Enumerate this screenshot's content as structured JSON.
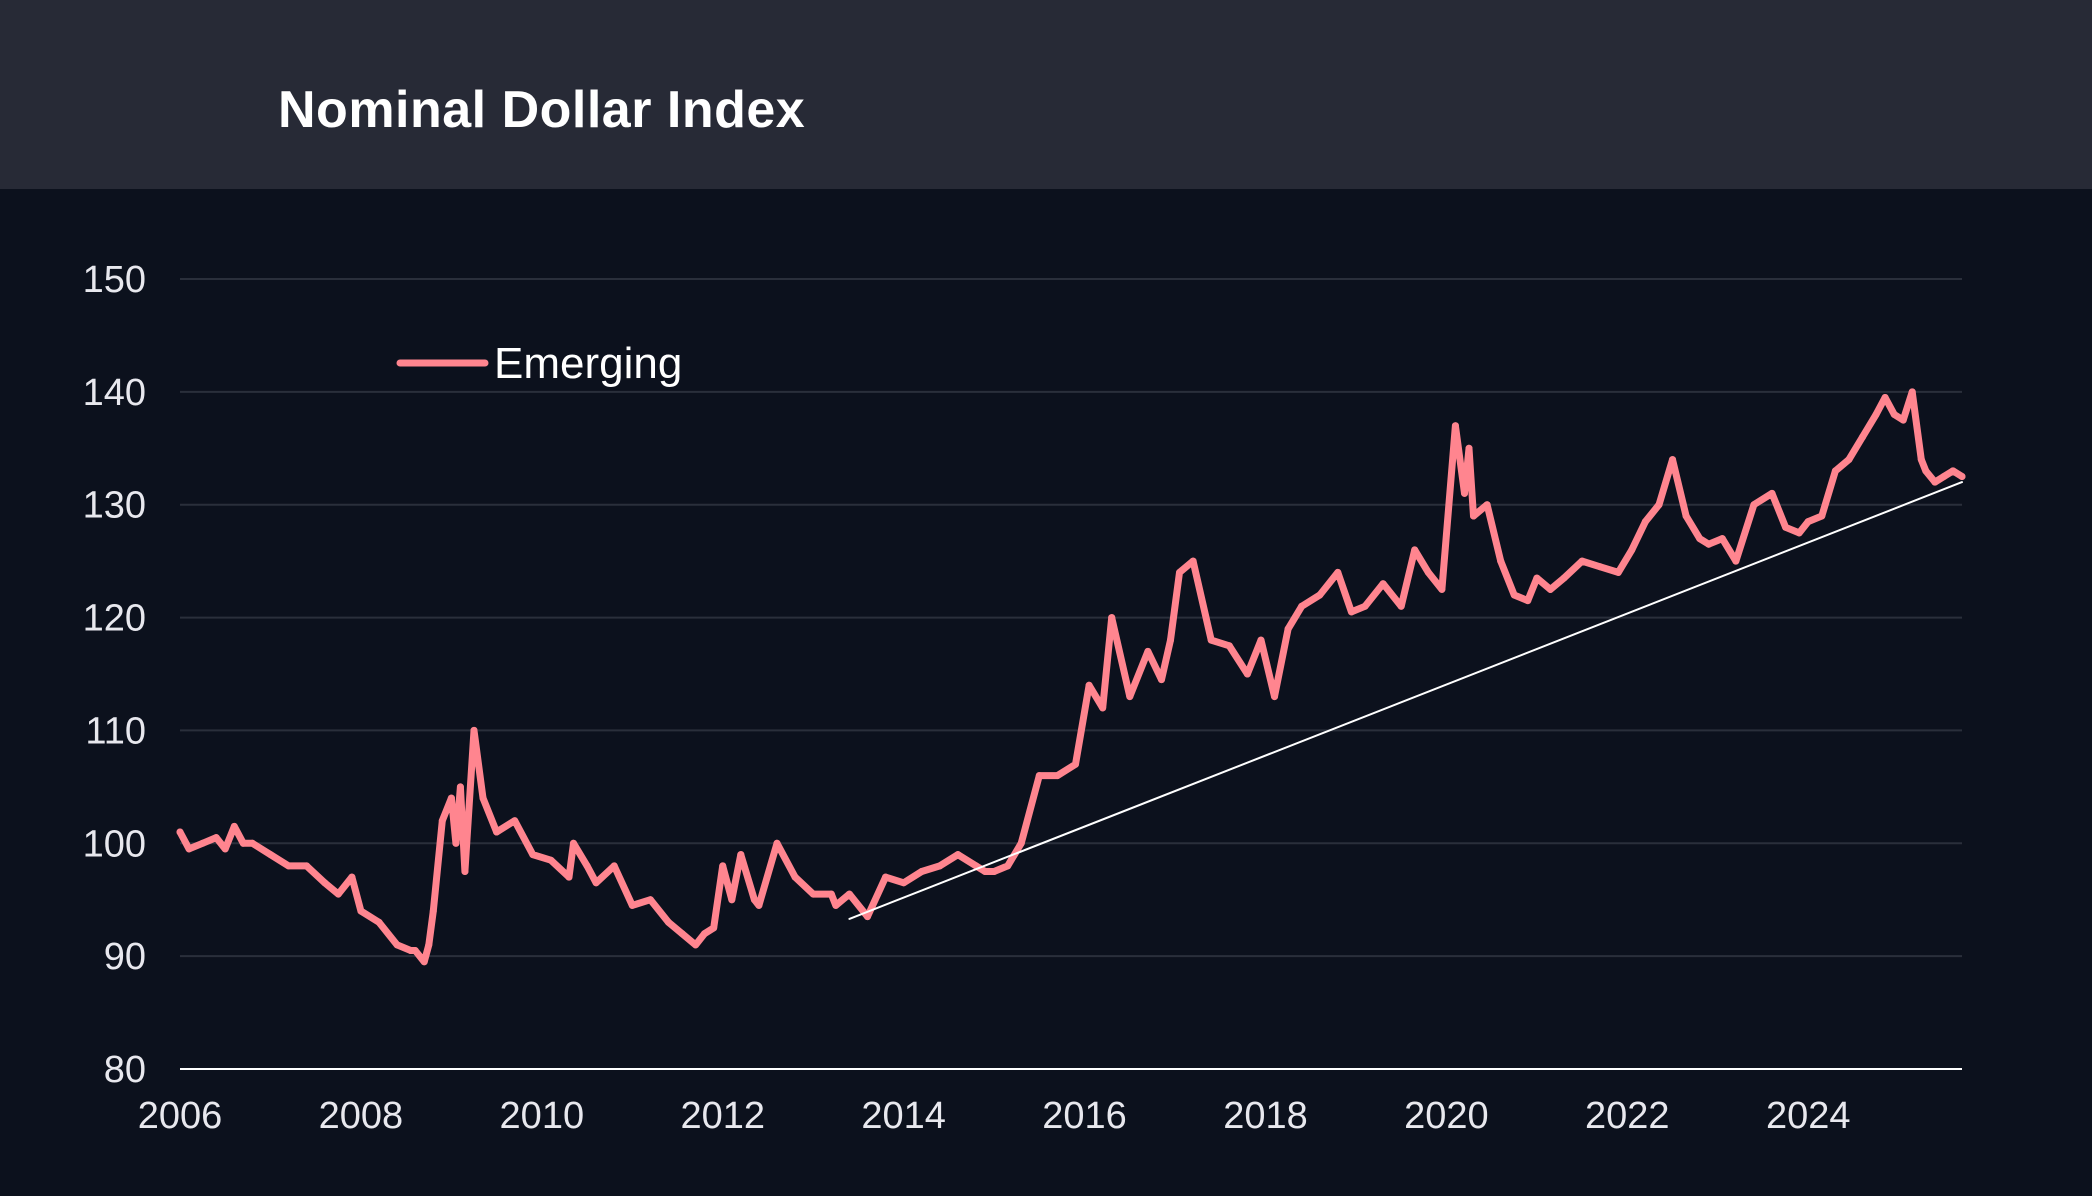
{
  "header": {
    "title": "Nominal Dollar Index"
  },
  "colors": {
    "background": "#0c111d",
    "header": "#272a36",
    "series": "#ff858f",
    "trend": "#ffffff",
    "grid": "#2a2f3b"
  },
  "chart_data": {
    "type": "line",
    "title": "Nominal Dollar Index",
    "xlabel": "",
    "ylabel": "",
    "xlim": [
      2006,
      2025.7
    ],
    "ylim": [
      80,
      150
    ],
    "x_ticks": [
      "2006",
      "2008",
      "2010",
      "2012",
      "2014",
      "2016",
      "2018",
      "2020",
      "2022",
      "2024"
    ],
    "y_ticks": [
      "80",
      "90",
      "100",
      "110",
      "120",
      "130",
      "140",
      "150"
    ],
    "grid": "horizontal",
    "legend": {
      "position": "top-left",
      "entries": [
        "Emerging"
      ]
    },
    "series": [
      {
        "name": "Emerging",
        "x": [
          2006.0,
          2006.1,
          2006.25,
          2006.4,
          2006.5,
          2006.6,
          2006.7,
          2006.8,
          2007.0,
          2007.2,
          2007.4,
          2007.6,
          2007.75,
          2007.9,
          2008.0,
          2008.2,
          2008.4,
          2008.55,
          2008.6,
          2008.7,
          2008.75,
          2008.8,
          2008.9,
          2009.0,
          2009.05,
          2009.1,
          2009.15,
          2009.25,
          2009.35,
          2009.5,
          2009.7,
          2009.9,
          2010.1,
          2010.3,
          2010.35,
          2010.5,
          2010.6,
          2010.8,
          2011.0,
          2011.2,
          2011.4,
          2011.55,
          2011.7,
          2011.8,
          2011.9,
          2012.0,
          2012.1,
          2012.2,
          2012.35,
          2012.4,
          2012.6,
          2012.8,
          2013.0,
          2013.2,
          2013.25,
          2013.4,
          2013.6,
          2013.8,
          2014.0,
          2014.2,
          2014.4,
          2014.6,
          2014.8,
          2014.9,
          2015.0,
          2015.15,
          2015.3,
          2015.5,
          2015.7,
          2015.9,
          2016.05,
          2016.2,
          2016.3,
          2016.5,
          2016.7,
          2016.85,
          2016.95,
          2017.05,
          2017.2,
          2017.4,
          2017.6,
          2017.8,
          2017.95,
          2018.1,
          2018.25,
          2018.4,
          2018.6,
          2018.8,
          2018.95,
          2019.1,
          2019.3,
          2019.5,
          2019.65,
          2019.8,
          2019.95,
          2020.1,
          2020.2,
          2020.25,
          2020.3,
          2020.45,
          2020.6,
          2020.75,
          2020.9,
          2021.0,
          2021.15,
          2021.3,
          2021.5,
          2021.7,
          2021.9,
          2022.05,
          2022.2,
          2022.35,
          2022.5,
          2022.65,
          2022.8,
          2022.9,
          2023.05,
          2023.2,
          2023.4,
          2023.6,
          2023.75,
          2023.9,
          2024.0,
          2024.15,
          2024.3,
          2024.45,
          2024.6,
          2024.75,
          2024.85,
          2024.95,
          2025.05,
          2025.15,
          2025.25,
          2025.3,
          2025.4,
          2025.5,
          2025.6,
          2025.7
        ],
        "values": [
          101,
          99.5,
          100,
          100.5,
          99.5,
          101.5,
          100,
          100,
          99,
          98,
          98,
          96.5,
          95.5,
          97,
          94,
          93,
          91,
          90.5,
          90.5,
          89.5,
          91,
          94,
          102,
          104,
          100,
          105,
          97.5,
          110,
          104,
          101,
          102,
          99,
          98.5,
          97,
          100,
          98,
          96.5,
          98,
          94.5,
          95,
          93,
          92,
          91,
          92,
          92.5,
          98,
          95,
          99,
          95,
          94.5,
          100,
          97,
          95.5,
          95.5,
          94.5,
          95.5,
          93.5,
          97,
          96.5,
          97.5,
          98,
          99,
          98,
          97.5,
          97.5,
          98,
          100,
          106,
          106,
          107,
          114,
          112,
          120,
          113,
          117,
          114.5,
          118,
          124,
          125,
          118,
          117.5,
          115,
          118,
          113,
          119,
          121,
          122,
          124,
          120.5,
          121,
          123,
          121,
          126,
          124,
          122.5,
          137,
          131,
          135,
          129,
          130,
          125,
          122,
          121.5,
          123.5,
          122.5,
          123.5,
          125,
          124.5,
          124,
          126,
          128.5,
          130,
          134,
          129,
          127,
          126.5,
          127,
          125,
          130,
          131,
          128,
          127.5,
          128.5,
          129,
          133,
          134,
          136,
          138,
          139.5,
          138,
          137.5,
          140,
          134,
          133,
          132,
          132.5,
          133,
          132.5
        ],
        "color": "#ff858f"
      },
      {
        "x": [
          2013.4,
          2025.7
        ],
        "values": [
          93.3,
          132
        ],
        "color": "#ffffff"
      }
    ]
  }
}
